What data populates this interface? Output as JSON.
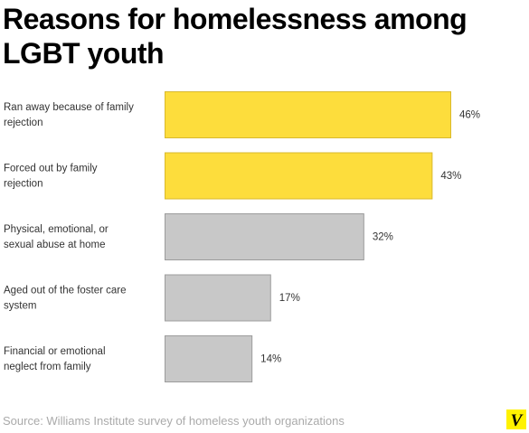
{
  "chart_data": {
    "type": "bar",
    "orientation": "horizontal",
    "title": "Reasons for homelessness among LGBT youth",
    "categories": [
      "Ran away because of family rejection",
      "Forced out by family rejection",
      "Physical, emotional, or sexual abuse at home",
      "Aged out of the foster care system",
      "Financial or emotional neglect from family"
    ],
    "category_lines": [
      [
        "Ran away because of family",
        "rejection"
      ],
      [
        "Forced out by family",
        "rejection"
      ],
      [
        "Physical, emotional, or",
        "sexual abuse at home"
      ],
      [
        "Aged out of the foster care",
        "system"
      ],
      [
        "Financial or emotional",
        "neglect from family"
      ]
    ],
    "values": [
      46,
      43,
      32,
      17,
      14
    ],
    "value_labels": [
      "46%",
      "43%",
      "32%",
      "17%",
      "14%"
    ],
    "unit": "%",
    "xlim": [
      0,
      46
    ],
    "grid": false,
    "legend": "none",
    "colors": [
      "#fddd3c",
      "#fddd3c",
      "#c8c8c8",
      "#c8c8c8",
      "#c8c8c8"
    ],
    "highlight_color": "#fddd3c",
    "highlight_border": "#d9b92e",
    "neutral_color": "#c8c8c8",
    "neutral_border": "#9c9c9c"
  },
  "source": "Source: Williams Institute survey of homeless youth organizations",
  "logo": {
    "icon": "vox-v-logo",
    "text": "V",
    "color": "#fff200"
  }
}
